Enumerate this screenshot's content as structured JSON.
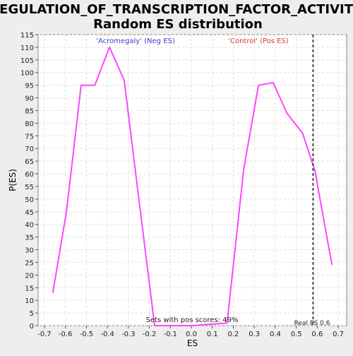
{
  "chart_data": {
    "type": "line",
    "title_line1": "REGULATION_OF_TRANSCRIPTION_FACTOR_ACTIVITY:",
    "title_line2": "Random ES distribution",
    "xlabel": "ES",
    "ylabel": "P(ES)",
    "xlim": [
      -0.73,
      0.74
    ],
    "ylim": [
      0,
      115
    ],
    "xticks": [
      -0.7,
      -0.6,
      -0.5,
      -0.4,
      -0.3,
      -0.2,
      -0.1,
      0.0,
      0.1,
      0.2,
      0.3,
      0.4,
      0.5,
      0.6,
      0.7
    ],
    "xtick_labels": [
      "-0.7",
      "-0.6",
      "-0.5",
      "-0.4",
      "-0.3",
      "-0.2",
      "-0.1",
      "0.0",
      "0.1",
      "0.2",
      "0.3",
      "0.4",
      "0.5",
      "0.6",
      "0.7"
    ],
    "yticks": [
      0,
      5,
      10,
      15,
      20,
      25,
      30,
      35,
      40,
      45,
      50,
      55,
      60,
      65,
      70,
      75,
      80,
      85,
      90,
      95,
      100,
      105,
      110,
      115
    ],
    "grid": true,
    "series": [
      {
        "color": "#ff44ff",
        "x": [
          -0.66,
          -0.595,
          -0.525,
          -0.46,
          -0.39,
          -0.32,
          -0.25,
          -0.175,
          0.0,
          0.17,
          0.25,
          0.32,
          0.39,
          0.455,
          0.53,
          0.59,
          0.6,
          0.67
        ],
        "y": [
          13,
          45,
          95,
          95,
          110,
          97,
          50,
          0,
          0,
          1,
          62,
          95,
          96,
          84,
          76,
          61,
          56,
          24
        ]
      }
    ],
    "real_es": {
      "x": 0.58,
      "label": "Real ES 0.6",
      "color": "#444444"
    },
    "annotations": {
      "neg_label": "'Acromegaly' (Neg ES)",
      "neg_color": "#4040cc",
      "pos_label": "'Control' (Pos ES)",
      "pos_color": "#dd3333",
      "bottom_text": "Sets with pos scores: 49%"
    }
  }
}
